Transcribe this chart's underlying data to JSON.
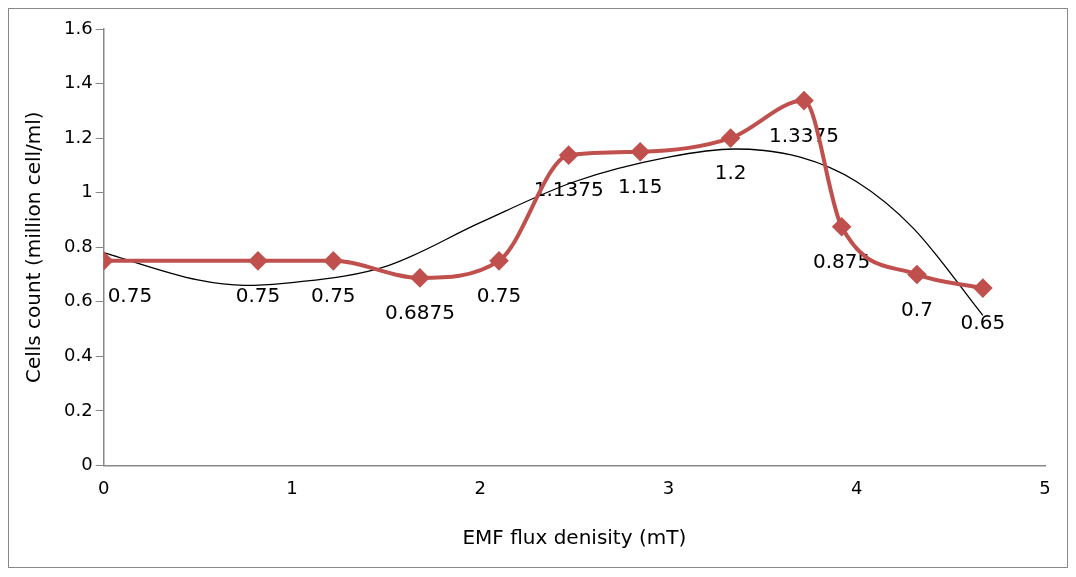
{
  "chart_data": {
    "type": "line",
    "xlabel": "EMF flux denisity (mT)",
    "ylabel": "Cells count (million cell/ml)",
    "xlim": [
      0,
      5
    ],
    "xticks": [
      0,
      1,
      2,
      3,
      4,
      5
    ],
    "ylim": [
      0,
      1.6
    ],
    "yticks": [
      0,
      0.2,
      0.4,
      0.6,
      0.8,
      1,
      1.2,
      1.4,
      1.6
    ],
    "grid": false,
    "legend": false,
    "series": [
      {
        "color": "#c0504d",
        "marker": "diamond",
        "data_labels": true,
        "x": [
          0,
          0.82,
          1.22,
          1.68,
          2.1,
          2.47,
          2.85,
          3.33,
          3.72,
          3.92,
          4.32,
          4.67
        ],
        "values": [
          0.75,
          0.75,
          0.75,
          0.6875,
          0.75,
          1.1375,
          1.15,
          1.2,
          1.3375,
          0.875,
          0.7,
          0.65
        ]
      },
      {
        "type": "line",
        "color": "#000000",
        "marker": "none",
        "x": [
          0,
          0.5,
          0.75,
          1,
          1.5,
          2,
          2.5,
          3,
          3.35,
          3.7,
          4,
          4.3,
          4.67
        ],
        "values": [
          0.78,
          0.68,
          0.66,
          0.67,
          0.73,
          0.89,
          1.04,
          1.13,
          1.16,
          1.13,
          1.04,
          0.87,
          0.55
        ]
      }
    ]
  }
}
